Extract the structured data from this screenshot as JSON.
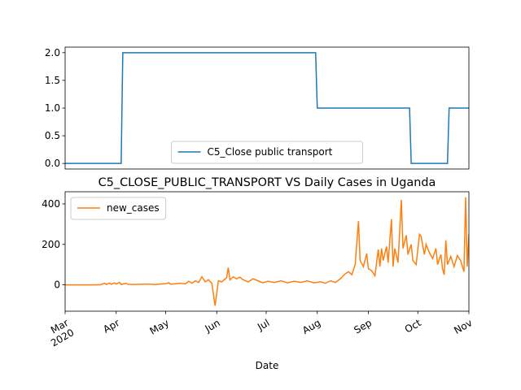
{
  "chart_data": [
    {
      "type": "line",
      "x": [
        "2020-03-01",
        "2020-04-04",
        "2020-04-05",
        "2020-07-31",
        "2020-08-01",
        "2020-09-26",
        "2020-09-27",
        "2020-10-19",
        "2020-10-20",
        "2020-11-01"
      ],
      "series": [
        {
          "name": "C5_Close public transport",
          "color": "#1f77b4",
          "values": [
            0,
            0,
            2,
            2,
            1,
            1,
            0,
            0,
            1,
            1
          ]
        }
      ],
      "xlim": [
        "2020-03-01",
        "2020-11-01"
      ],
      "ylim": [
        -0.1,
        2.1
      ],
      "yticks": [
        {
          "value": 0,
          "label": "0.0"
        },
        {
          "value": 0.5,
          "label": "0.5"
        },
        {
          "value": 1,
          "label": "1.0"
        },
        {
          "value": 1.5,
          "label": "1.5"
        },
        {
          "value": 2,
          "label": "2.0"
        }
      ],
      "legend": "lower center"
    },
    {
      "type": "line",
      "title": "C5_CLOSE_PUBLIC_TRANSPORT VS Daily Cases in Uganda",
      "xlabel": "Date",
      "x": [
        "2020-03-01",
        "2020-03-20",
        "2020-03-21",
        "2020-03-22",
        "2020-03-25",
        "2020-03-26",
        "2020-03-28",
        "2020-03-29",
        "2020-03-31",
        "2020-04-01",
        "2020-04-03",
        "2020-04-04",
        "2020-04-07",
        "2020-04-08",
        "2020-04-12",
        "2020-04-20",
        "2020-04-25",
        "2020-05-01",
        "2020-05-03",
        "2020-05-04",
        "2020-05-10",
        "2020-05-13",
        "2020-05-15",
        "2020-05-17",
        "2020-05-19",
        "2020-05-21",
        "2020-05-23",
        "2020-05-25",
        "2020-05-27",
        "2020-05-29",
        "2020-05-31",
        "2020-06-02",
        "2020-06-04",
        "2020-06-07",
        "2020-06-08",
        "2020-06-09",
        "2020-06-11",
        "2020-06-13",
        "2020-06-15",
        "2020-06-17",
        "2020-06-20",
        "2020-06-23",
        "2020-06-26",
        "2020-06-29",
        "2020-07-02",
        "2020-07-06",
        "2020-07-10",
        "2020-07-14",
        "2020-07-18",
        "2020-07-22",
        "2020-07-26",
        "2020-07-30",
        "2020-08-03",
        "2020-08-06",
        "2020-08-09",
        "2020-08-12",
        "2020-08-15",
        "2020-08-18",
        "2020-08-20",
        "2020-08-22",
        "2020-08-24",
        "2020-08-26",
        "2020-08-27",
        "2020-08-29",
        "2020-08-31",
        "2020-09-01",
        "2020-09-03",
        "2020-09-05",
        "2020-09-07",
        "2020-09-08",
        "2020-09-09",
        "2020-09-10",
        "2020-09-12",
        "2020-09-13",
        "2020-09-15",
        "2020-09-16",
        "2020-09-17",
        "2020-09-19",
        "2020-09-21",
        "2020-09-22",
        "2020-09-24",
        "2020-09-25",
        "2020-09-27",
        "2020-09-28",
        "2020-09-30",
        "2020-10-02",
        "2020-10-03",
        "2020-10-05",
        "2020-10-06",
        "2020-10-08",
        "2020-10-10",
        "2020-10-12",
        "2020-10-13",
        "2020-10-15",
        "2020-10-16",
        "2020-10-17",
        "2020-10-18",
        "2020-10-19",
        "2020-10-21",
        "2020-10-23",
        "2020-10-25",
        "2020-10-27",
        "2020-10-29",
        "2020-10-30",
        "2020-10-31",
        "2020-11-01"
      ],
      "series": [
        {
          "name": "new_cases",
          "color": "#ff7f0e",
          "values": [
            0,
            0,
            1,
            0,
            8,
            2,
            9,
            3,
            10,
            4,
            12,
            2,
            8,
            3,
            2,
            4,
            2,
            6,
            10,
            3,
            8,
            5,
            18,
            8,
            20,
            12,
            40,
            15,
            25,
            8,
            -103,
            20,
            15,
            35,
            85,
            25,
            40,
            30,
            38,
            25,
            15,
            30,
            20,
            10,
            18,
            12,
            20,
            10,
            18,
            12,
            20,
            10,
            15,
            8,
            20,
            12,
            30,
            55,
            65,
            50,
            100,
            315,
            120,
            90,
            155,
            80,
            70,
            45,
            175,
            90,
            180,
            120,
            190,
            110,
            325,
            90,
            180,
            110,
            420,
            180,
            245,
            150,
            200,
            120,
            100,
            250,
            240,
            150,
            200,
            160,
            130,
            180,
            100,
            150,
            80,
            50,
            220,
            100,
            140,
            90,
            145,
            120,
            65,
            433,
            90,
            250
          ]
        }
      ],
      "xlim": [
        "2020-03-01",
        "2020-11-01"
      ],
      "xticks": [
        {
          "value": "2020-03-01",
          "label": "Mar\n2020"
        },
        {
          "value": "2020-04-01",
          "label": "Apr"
        },
        {
          "value": "2020-05-01",
          "label": "May"
        },
        {
          "value": "2020-06-01",
          "label": "Jun"
        },
        {
          "value": "2020-07-01",
          "label": "Jul"
        },
        {
          "value": "2020-08-01",
          "label": "Aug"
        },
        {
          "value": "2020-09-01",
          "label": "Sep"
        },
        {
          "value": "2020-10-01",
          "label": "Oct"
        },
        {
          "value": "2020-11-01",
          "label": "Nov"
        }
      ],
      "ylim": [
        -130,
        460
      ],
      "yticks": [
        0,
        200,
        400
      ],
      "legend": "upper left"
    }
  ]
}
